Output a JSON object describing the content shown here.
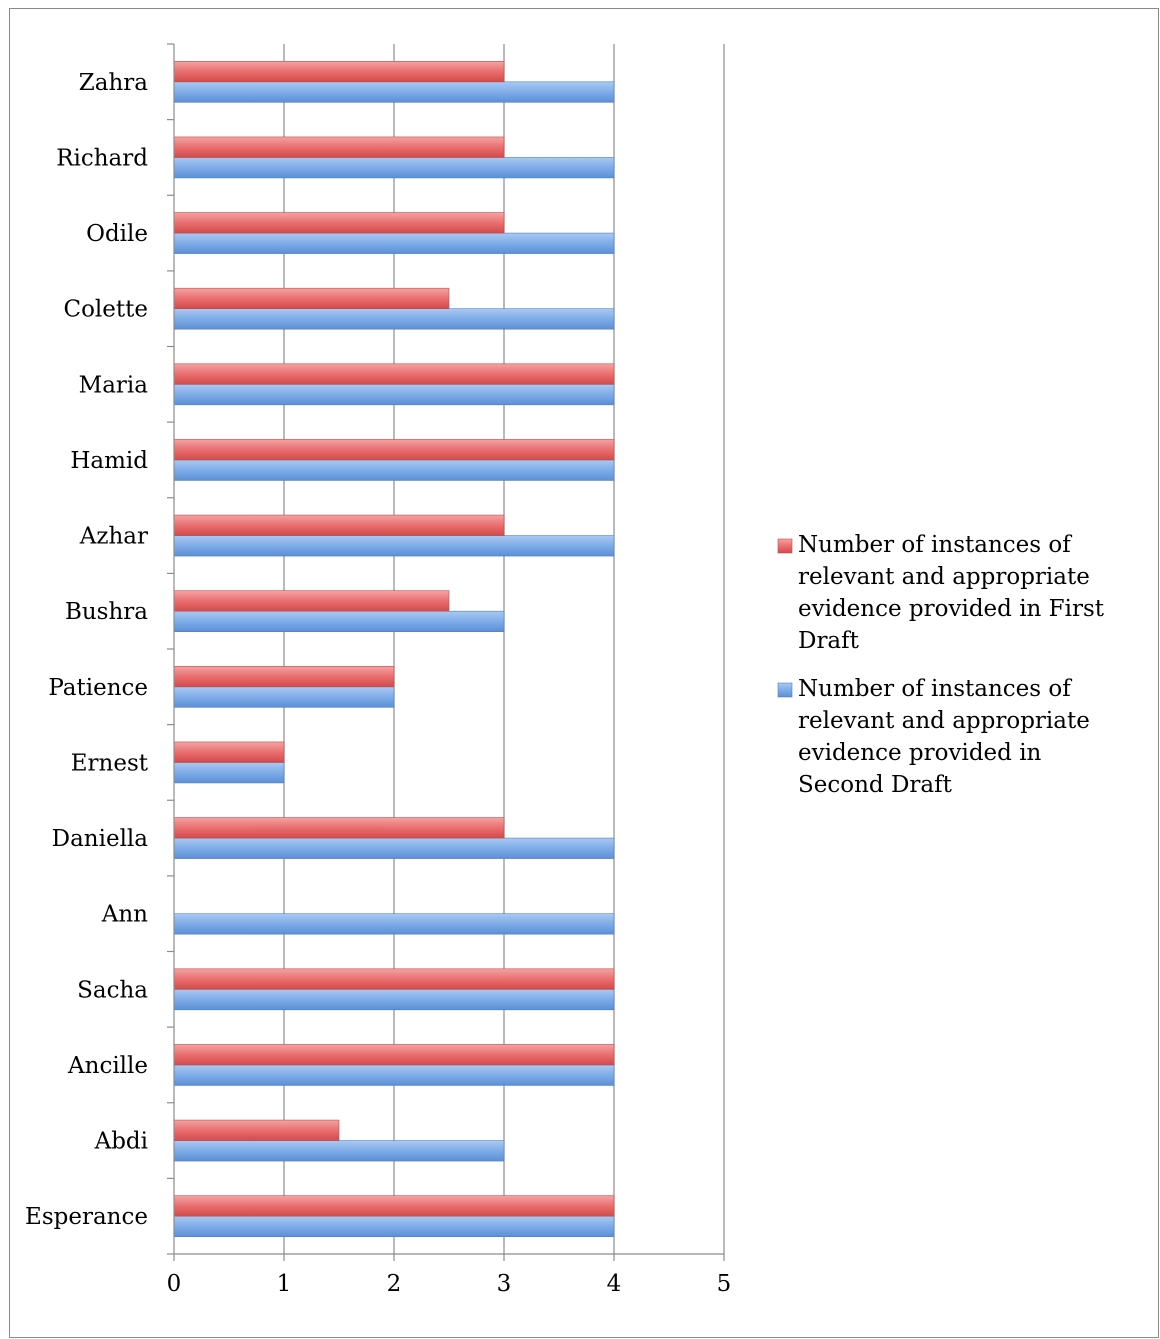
{
  "chart_data": {
    "type": "bar",
    "orientation": "horizontal",
    "title": "",
    "xlabel": "",
    "ylabel": "",
    "categories": [
      "Esperance",
      "Abdi",
      "Ancille",
      "Sacha",
      "Ann",
      "Daniella",
      "Ernest",
      "Patience",
      "Bushra",
      "Azhar",
      "Hamid",
      "Maria",
      "Colette",
      "Odile",
      "Richard",
      "Zahra"
    ],
    "series": [
      {
        "name": "Number of instances of relevant and appropriate evidence provided in Second Draft",
        "color": "#7aa9e6",
        "values": [
          4,
          3,
          4,
          4,
          4,
          4,
          1,
          2,
          3,
          4,
          4,
          4,
          4,
          4,
          4,
          4
        ]
      },
      {
        "name": "Number of instances of relevant and appropriate evidence provided in First Draft",
        "color": "#e86a6a",
        "values": [
          4,
          1.5,
          4,
          4,
          0,
          3,
          1,
          2,
          2.5,
          3,
          4,
          4,
          2.5,
          3,
          3,
          3
        ]
      }
    ],
    "xlim": [
      0,
      5
    ],
    "xticks": [
      "0",
      "1",
      "2",
      "3",
      "4",
      "5"
    ],
    "grid": true,
    "legend_position": "right",
    "legend_order": [
      1,
      0
    ]
  }
}
